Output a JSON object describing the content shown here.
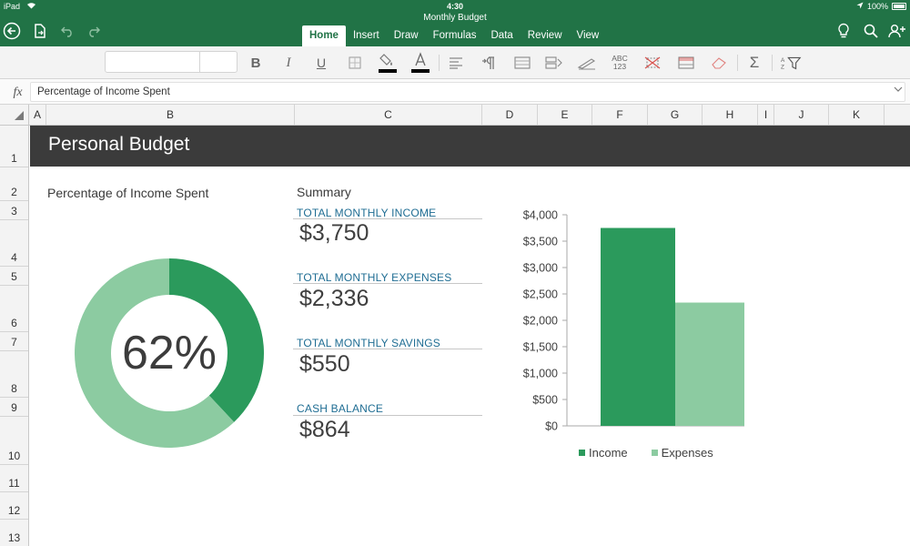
{
  "status_bar": {
    "device": "iPad",
    "time": "4:30",
    "battery": "100%"
  },
  "document": {
    "title": "Monthly Budget"
  },
  "ribbon": {
    "tabs": [
      {
        "label": "Home",
        "active": true
      },
      {
        "label": "Insert"
      },
      {
        "label": "Draw"
      },
      {
        "label": "Formulas"
      },
      {
        "label": "Data"
      },
      {
        "label": "Review"
      },
      {
        "label": "View"
      }
    ],
    "toolbar": {
      "font_name": "",
      "font_size": "",
      "bold": "B",
      "italic": "I",
      "underline": "U",
      "number_format": "ABC 123"
    }
  },
  "formula_bar": {
    "fx": "fx",
    "content": "Percentage of Income Spent"
  },
  "grid": {
    "columns": [
      "A",
      "B",
      "C",
      "D",
      "E",
      "F",
      "G",
      "H",
      "I",
      "J",
      "K"
    ],
    "rows": [
      "1",
      "2",
      "3",
      "4",
      "5",
      "6",
      "7",
      "8",
      "9",
      "10",
      "11",
      "12",
      "13"
    ]
  },
  "sheet": {
    "title": "Personal Budget",
    "pct_section_label": "Percentage of Income Spent",
    "percent_display": "62%",
    "percent_value": 62,
    "summary_label": "Summary",
    "summary": [
      {
        "label": "TOTAL MONTHLY INCOME",
        "value": "$3,750"
      },
      {
        "label": "TOTAL MONTHLY EXPENSES",
        "value": "$2,336"
      },
      {
        "label": "TOTAL MONTHLY SAVINGS",
        "value": "$550"
      },
      {
        "label": "CASH BALANCE",
        "value": "$864"
      }
    ]
  },
  "colors": {
    "brand_green": "#217346",
    "income": "#2b9a5c",
    "expenses": "#8ccba1",
    "banner": "#3b3b3b",
    "summary_label": "#1f6d93"
  },
  "chart_data": [
    {
      "type": "pie",
      "title": "Percentage of Income Spent",
      "values": [
        38,
        62
      ],
      "center_label": "62%",
      "colors": [
        "#2b9a5c",
        "#8ccba1"
      ]
    },
    {
      "type": "bar",
      "categories": [
        "Income",
        "Expenses"
      ],
      "values": [
        3750,
        2336
      ],
      "y_ticks": [
        "$0",
        "$500",
        "$1,000",
        "$1,500",
        "$2,000",
        "$2,500",
        "$3,000",
        "$3,500",
        "$4,000"
      ],
      "ylim": [
        0,
        4000
      ],
      "legend": "bottom",
      "grid": false,
      "colors": [
        "#2b9a5c",
        "#8ccba1"
      ]
    }
  ]
}
